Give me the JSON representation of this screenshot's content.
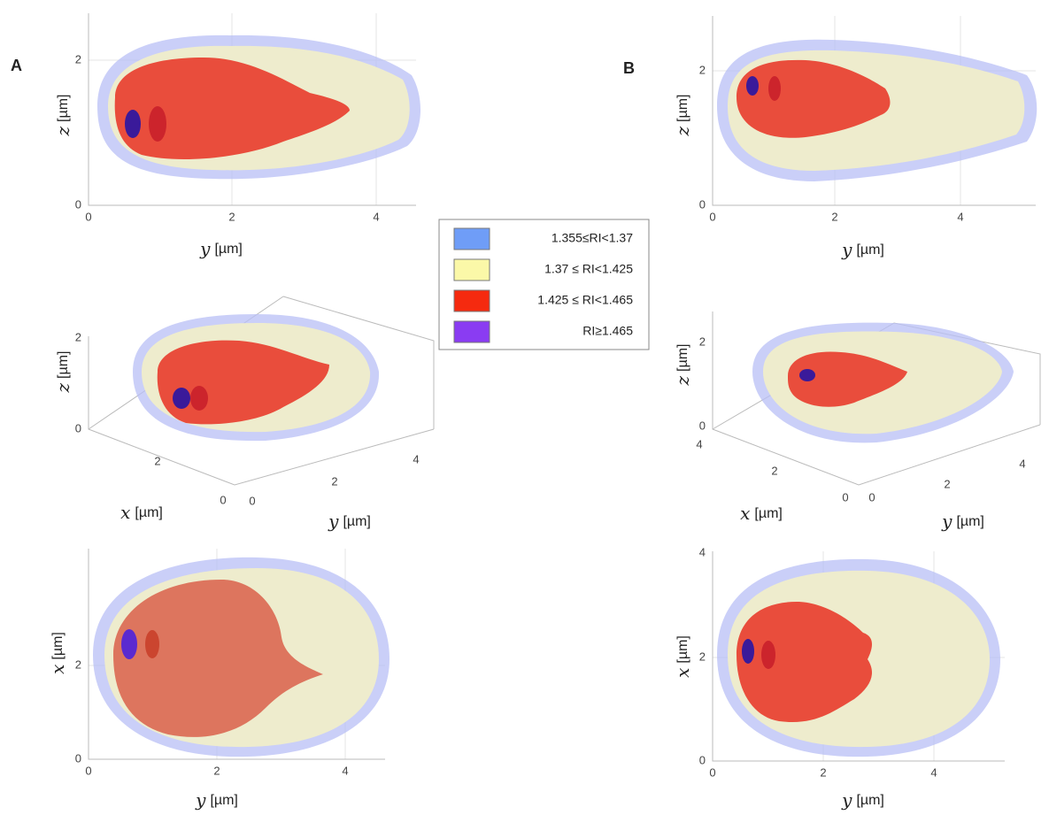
{
  "panels": [
    {
      "label": "A",
      "plots": [
        {
          "x_ticks": [
            "0",
            "2",
            "4"
          ],
          "y_ticks": [
            "0",
            "2"
          ],
          "x_label": {
            "var": "y",
            "unit": "[µm]"
          },
          "y_label": {
            "var": "z",
            "unit": "[µm]"
          }
        },
        {
          "z_ticks": [
            "0",
            "2"
          ],
          "x_ticks": [
            "0",
            "2"
          ],
          "y_ticks": [
            "0",
            "2",
            "4"
          ],
          "x_label": {
            "var": "x",
            "unit": "[µm]"
          },
          "y_label": {
            "var": "y",
            "unit": "[µm]"
          },
          "z_label": {
            "var": "z",
            "unit": "[µm]"
          }
        },
        {
          "x_ticks": [
            "0",
            "2",
            "4"
          ],
          "y_ticks": [
            "0",
            "2"
          ],
          "x_label": {
            "var": "y",
            "unit": "[µm]"
          },
          "y_label": {
            "var": "x",
            "unit": "[µm]"
          }
        }
      ]
    },
    {
      "label": "B",
      "plots": [
        {
          "x_ticks": [
            "0",
            "2",
            "4"
          ],
          "y_ticks": [
            "0",
            "2"
          ],
          "x_label": {
            "var": "y",
            "unit": "[µm]"
          },
          "y_label": {
            "var": "z",
            "unit": "[µm]"
          }
        },
        {
          "z_ticks": [
            "0",
            "2"
          ],
          "x_ticks": [
            "0",
            "2",
            "4"
          ],
          "y_ticks": [
            "0",
            "2",
            "4"
          ],
          "x_label": {
            "var": "x",
            "unit": "[µm]"
          },
          "y_label": {
            "var": "y",
            "unit": "[µm]"
          },
          "z_label": {
            "var": "z",
            "unit": "[µm]"
          }
        },
        {
          "x_ticks": [
            "0",
            "2",
            "4"
          ],
          "y_ticks": [
            "0",
            "2",
            "4"
          ],
          "x_label": {
            "var": "y",
            "unit": "[µm]"
          },
          "y_label": {
            "var": "x",
            "unit": "[µm]"
          }
        }
      ]
    }
  ],
  "legend": [
    {
      "label": "1.355≤RI<1.37",
      "color": "#6f9df7"
    },
    {
      "label": "1.37 ≤ RI<1.425",
      "color": "#fbf8a8"
    },
    {
      "label": "1.425 ≤ RI<1.465",
      "color": "#f52a0f"
    },
    {
      "label": "RI≥1.465",
      "color": "#8a3cf2"
    }
  ]
}
